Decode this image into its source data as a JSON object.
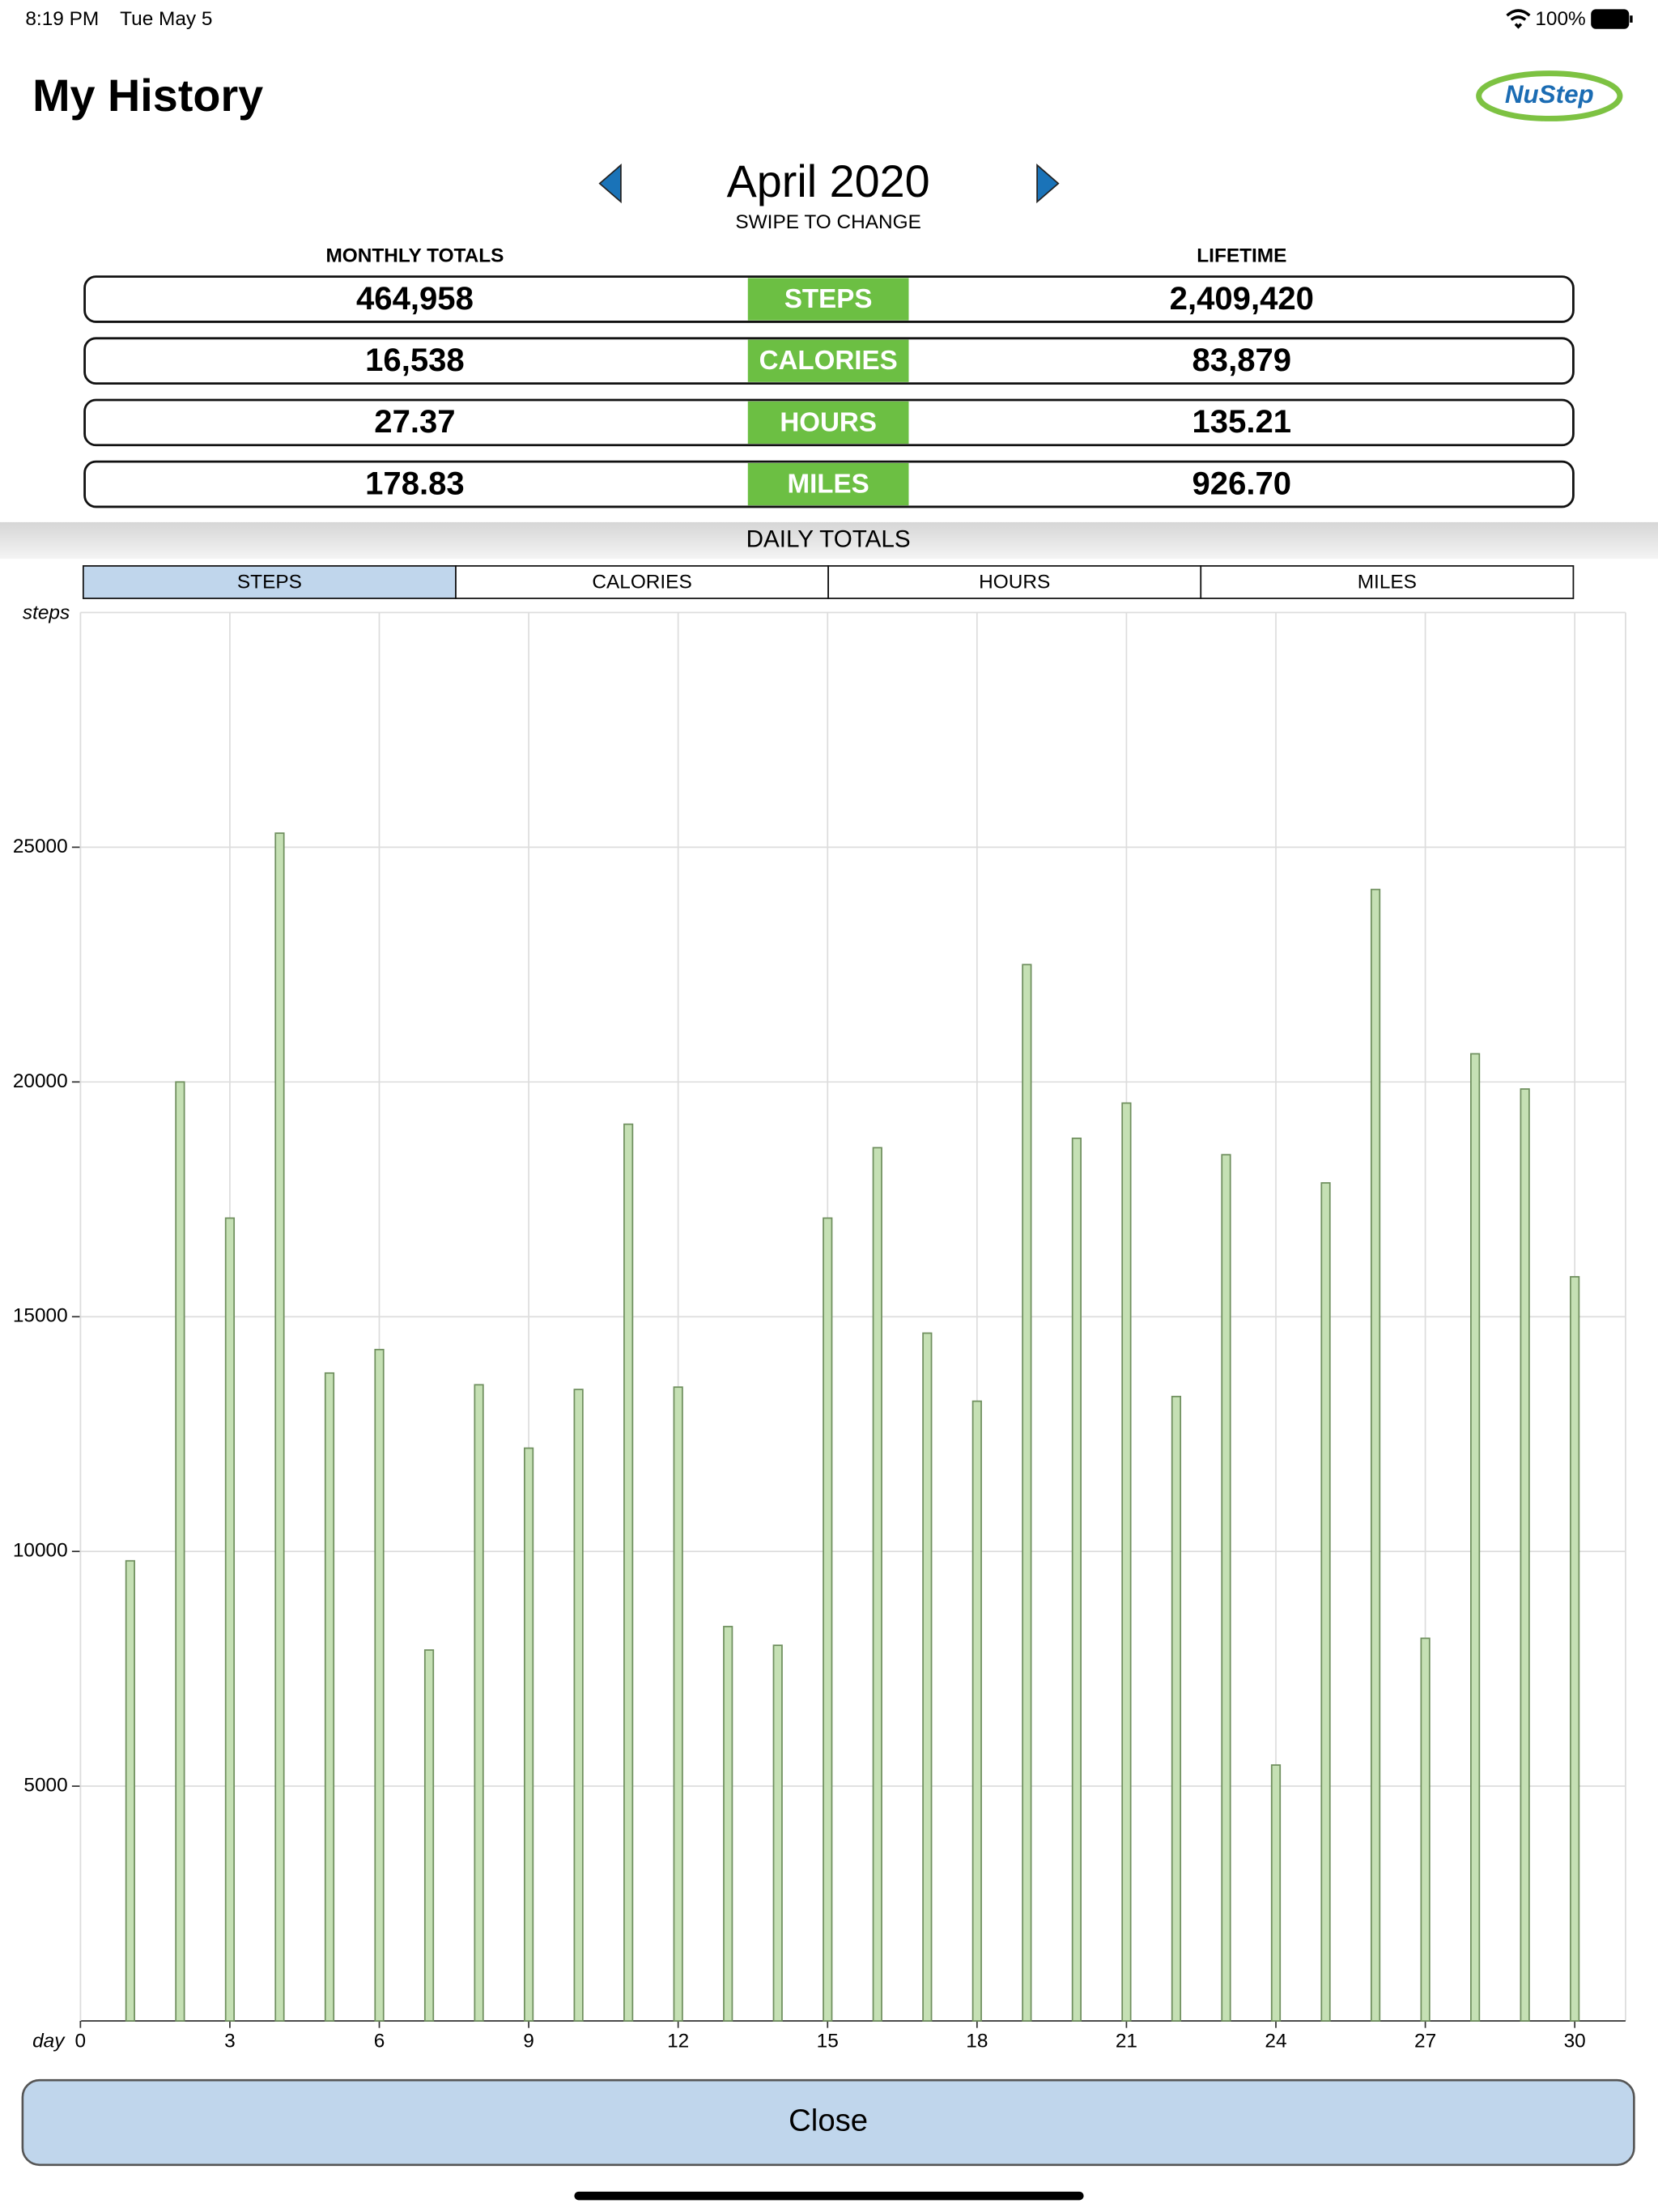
{
  "status_bar": {
    "time": "8:19 PM",
    "date": "Tue May 5",
    "battery": "100%"
  },
  "header": {
    "title": "My History",
    "logo": "NuStep"
  },
  "month_nav": {
    "month": "April 2020",
    "hint": "SWIPE TO CHANGE"
  },
  "totals": {
    "headers": [
      "MONTHLY TOTALS",
      "LIFETIME"
    ],
    "rows": [
      {
        "label": "STEPS",
        "monthly": "464,958",
        "lifetime": "2,409,420"
      },
      {
        "label": "CALORIES",
        "monthly": "16,538",
        "lifetime": "83,879"
      },
      {
        "label": "HOURS",
        "monthly": "27.37",
        "lifetime": "135.21"
      },
      {
        "label": "MILES",
        "monthly": "178.83",
        "lifetime": "926.70"
      }
    ]
  },
  "daily_totals": {
    "title": "DAILY TOTALS",
    "tabs": [
      "STEPS",
      "CALORIES",
      "HOURS",
      "MILES"
    ],
    "selected": 0
  },
  "chart_data": {
    "type": "bar",
    "x_label": "day",
    "y_label": "steps",
    "x": [
      1,
      2,
      3,
      4,
      5,
      6,
      7,
      8,
      9,
      10,
      11,
      12,
      13,
      14,
      15,
      16,
      17,
      18,
      19,
      20,
      21,
      22,
      23,
      24,
      25,
      26,
      27,
      28,
      29,
      30
    ],
    "values": [
      9800,
      20000,
      17100,
      25300,
      13800,
      14300,
      7900,
      13550,
      12200,
      13450,
      19100,
      13500,
      8400,
      8000,
      17100,
      18600,
      14650,
      13200,
      22500,
      18800,
      19550,
      13300,
      18450,
      5450,
      17850,
      24100,
      8150,
      20600,
      19850,
      15850
    ],
    "color": "#c5e0b4",
    "xlim": [
      0,
      30
    ],
    "xticks": [
      0,
      3,
      6,
      9,
      12,
      15,
      18,
      21,
      24,
      27,
      30
    ],
    "ylim": [
      0,
      30000
    ],
    "yticks": [
      5000,
      10000,
      15000,
      20000,
      25000
    ],
    "grid": true
  },
  "close_button": "Close"
}
